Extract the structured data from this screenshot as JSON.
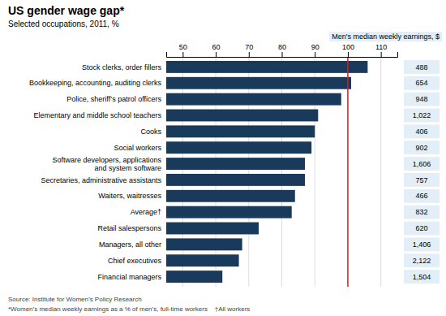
{
  "chart_data": {
    "type": "bar",
    "orientation": "horizontal",
    "title": "US gender wage gap*",
    "subtitle": "Selected occupations, 2011, %",
    "annotation": "Men's median weekly earnings, $",
    "categories": [
      "Stock clerks, order fillers",
      "Bookkeeping, accounting, auditing clerks",
      "Police, sheriff’s patrol officers",
      "Elementary and middle school teachers",
      "Cooks",
      "Social workers",
      "Software developers, applications\nand system software",
      "Secretaries, administrative assistants",
      "Waiters, waitresses",
      "Average†",
      "Retail salespersons",
      "Managers, all other",
      "Chief executives",
      "Financial managers"
    ],
    "values": [
      106,
      101,
      98,
      91,
      90,
      89,
      87,
      87,
      84,
      83,
      73,
      68,
      67,
      62
    ],
    "earnings": [
      "488",
      "654",
      "948",
      "1,022",
      "406",
      "902",
      "1,606",
      "757",
      "466",
      "832",
      "620",
      "1,406",
      "2,122",
      "1,504"
    ],
    "color": "#1a3a5c",
    "ref_line": {
      "value": 100,
      "color": "#cc2222"
    },
    "xlim": [
      45,
      115
    ],
    "xticks": [
      50,
      60,
      70,
      80,
      90,
      100,
      110
    ],
    "grid": true,
    "source": "Source: Institute for Women’s Policy Research",
    "footnote": "*Women’s median weekly earnings as a % of men’s, full-time workers    †All workers"
  }
}
